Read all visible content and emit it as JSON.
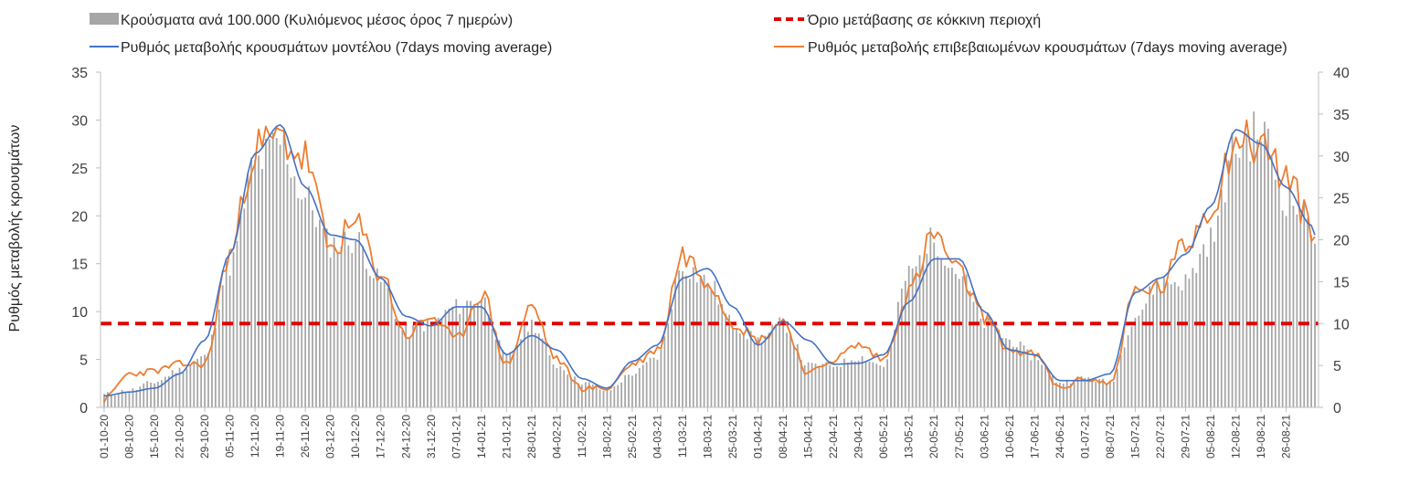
{
  "chart_data": {
    "type": "bar+line",
    "title": "",
    "ylabel": "Ρυθμός μεταβολής κρουσμάτων",
    "y_left": {
      "min": 0,
      "max": 35,
      "ticks": [
        0,
        5,
        10,
        15,
        20,
        25,
        30,
        35
      ]
    },
    "y_right": {
      "min": 0,
      "max": 40,
      "ticks": [
        0,
        5,
        10,
        15,
        20,
        25,
        30,
        35,
        40
      ]
    },
    "x_tick_labels": [
      "01-10-20",
      "08-10-20",
      "15-10-20",
      "22-10-20",
      "29-10-20",
      "05-11-20",
      "12-11-20",
      "19-11-20",
      "26-11-20",
      "03-12-20",
      "10-12-20",
      "17-12-20",
      "24-12-20",
      "31-12-20",
      "07-01-21",
      "14-01-21",
      "21-01-21",
      "28-01-21",
      "04-02-21",
      "11-02-21",
      "18-02-21",
      "25-02-21",
      "04-03-21",
      "11-03-21",
      "18-03-21",
      "25-03-21",
      "01-04-21",
      "08-04-21",
      "15-04-21",
      "22-04-21",
      "29-04-21",
      "06-05-21",
      "13-05-21",
      "20-05-21",
      "27-05-21",
      "03-06-21",
      "10-06-21",
      "17-06-21",
      "24-06-21",
      "01-07-21",
      "08-07-21",
      "15-07-21",
      "22-07-21",
      "29-07-21",
      "05-08-21",
      "12-08-21",
      "19-08-21",
      "26-08-21"
    ],
    "n_days": 338,
    "threshold": {
      "name": "Όριο μετάβασης σε κόκκινη περιοχή",
      "value_right_axis": 10,
      "color": "#e00000"
    },
    "series": [
      {
        "name": "Κρούσματα ανά 100.000 (Κυλιόμενος μέσος όρος 7 ημερών)",
        "type": "bar",
        "axis": "right",
        "color": "#a6a6a6",
        "knots": [
          [
            0,
            1.5
          ],
          [
            7,
            2
          ],
          [
            14,
            3
          ],
          [
            21,
            4.5
          ],
          [
            28,
            6
          ],
          [
            35,
            17
          ],
          [
            42,
            29
          ],
          [
            49,
            31.5
          ],
          [
            56,
            25
          ],
          [
            63,
            19.5
          ],
          [
            70,
            20
          ],
          [
            77,
            15
          ],
          [
            84,
            9
          ],
          [
            91,
            10
          ],
          [
            98,
            12
          ],
          [
            105,
            13
          ],
          [
            112,
            6
          ],
          [
            119,
            10
          ],
          [
            126,
            5
          ],
          [
            133,
            3
          ],
          [
            140,
            2
          ],
          [
            147,
            4
          ],
          [
            154,
            6
          ],
          [
            161,
            17
          ],
          [
            168,
            15
          ],
          [
            175,
            10
          ],
          [
            182,
            8
          ],
          [
            189,
            10
          ],
          [
            196,
            5
          ],
          [
            203,
            5
          ],
          [
            210,
            6
          ],
          [
            217,
            5
          ],
          [
            224,
            16
          ],
          [
            231,
            20
          ],
          [
            238,
            16
          ],
          [
            245,
            10
          ],
          [
            252,
            8
          ],
          [
            259,
            6
          ],
          [
            266,
            3
          ],
          [
            273,
            3.5
          ],
          [
            280,
            3
          ],
          [
            287,
            11
          ],
          [
            294,
            15
          ],
          [
            301,
            15
          ],
          [
            308,
            20
          ],
          [
            315,
            31
          ],
          [
            322,
            33
          ],
          [
            329,
            25
          ],
          [
            336,
            22
          ],
          [
            338,
            20
          ]
        ]
      },
      {
        "name": "Ρυθμός μεταβολής κρουσμάτων μοντέλου (7days moving average)",
        "type": "line",
        "axis": "left",
        "color": "#4472c4",
        "knots": [
          [
            0,
            1.2
          ],
          [
            7,
            1.6
          ],
          [
            14,
            2
          ],
          [
            21,
            3.5
          ],
          [
            28,
            7
          ],
          [
            35,
            16
          ],
          [
            42,
            26.5
          ],
          [
            49,
            29.5
          ],
          [
            56,
            23
          ],
          [
            63,
            18
          ],
          [
            70,
            17.5
          ],
          [
            77,
            13.5
          ],
          [
            84,
            9.5
          ],
          [
            91,
            8.5
          ],
          [
            98,
            10.5
          ],
          [
            105,
            10.5
          ],
          [
            112,
            5.5
          ],
          [
            119,
            7.5
          ],
          [
            126,
            6
          ],
          [
            133,
            3
          ],
          [
            140,
            2
          ],
          [
            147,
            4.8
          ],
          [
            154,
            6.5
          ],
          [
            161,
            13.5
          ],
          [
            168,
            14.5
          ],
          [
            175,
            10.5
          ],
          [
            182,
            6.5
          ],
          [
            189,
            9
          ],
          [
            196,
            7
          ],
          [
            203,
            4.5
          ],
          [
            210,
            4.6
          ],
          [
            217,
            5.5
          ],
          [
            224,
            11
          ],
          [
            231,
            15.5
          ],
          [
            238,
            15.5
          ],
          [
            245,
            10
          ],
          [
            252,
            6
          ],
          [
            259,
            5.5
          ],
          [
            266,
            2.8
          ],
          [
            273,
            2.8
          ],
          [
            280,
            3.5
          ],
          [
            287,
            12
          ],
          [
            294,
            13.5
          ],
          [
            301,
            16
          ],
          [
            308,
            21
          ],
          [
            315,
            29
          ],
          [
            322,
            27.5
          ],
          [
            329,
            23
          ],
          [
            336,
            19
          ],
          [
            338,
            17
          ]
        ]
      },
      {
        "name": "Ρυθμός μεταβολής επιβεβαιωμένων κρουσμάτων (7days moving average)",
        "type": "line",
        "axis": "left",
        "color": "#ed7d31",
        "knots": [
          [
            0,
            0.8
          ],
          [
            7,
            3.5
          ],
          [
            14,
            3.8
          ],
          [
            21,
            4.5
          ],
          [
            28,
            4.5
          ],
          [
            35,
            16
          ],
          [
            42,
            27
          ],
          [
            49,
            28
          ],
          [
            56,
            26
          ],
          [
            63,
            16.5
          ],
          [
            70,
            19
          ],
          [
            77,
            14
          ],
          [
            84,
            7.5
          ],
          [
            91,
            9.5
          ],
          [
            98,
            7
          ],
          [
            105,
            12
          ],
          [
            112,
            4.5
          ],
          [
            119,
            10.5
          ],
          [
            126,
            5
          ],
          [
            133,
            2
          ],
          [
            140,
            2
          ],
          [
            147,
            4.5
          ],
          [
            154,
            6
          ],
          [
            161,
            16
          ],
          [
            168,
            13.5
          ],
          [
            175,
            9
          ],
          [
            182,
            7
          ],
          [
            189,
            9
          ],
          [
            196,
            3.5
          ],
          [
            203,
            5
          ],
          [
            210,
            6.5
          ],
          [
            217,
            5
          ],
          [
            224,
            12
          ],
          [
            231,
            18
          ],
          [
            238,
            14
          ],
          [
            245,
            9.5
          ],
          [
            252,
            6
          ],
          [
            259,
            5.5
          ],
          [
            266,
            2
          ],
          [
            273,
            3
          ],
          [
            280,
            2.5
          ],
          [
            287,
            12
          ],
          [
            294,
            12.5
          ],
          [
            301,
            17
          ],
          [
            308,
            21
          ],
          [
            315,
            28
          ],
          [
            322,
            27.5
          ],
          [
            329,
            24
          ],
          [
            336,
            19
          ],
          [
            338,
            17
          ]
        ]
      }
    ]
  }
}
